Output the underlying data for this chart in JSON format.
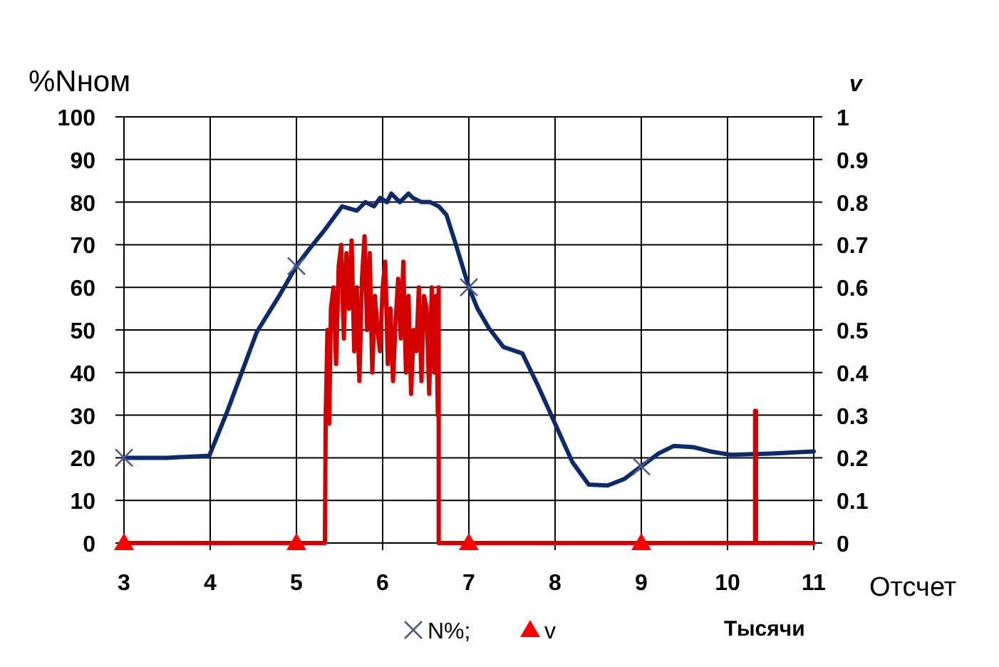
{
  "chart_data": {
    "type": "line",
    "xlabel": "Отсчет",
    "ylabel": "%Nном",
    "y2label": "v",
    "annotations": [
      "Тысячи"
    ],
    "xlim": [
      3,
      11
    ],
    "xticks": [
      3,
      4,
      5,
      6,
      7,
      8,
      9,
      10,
      11
    ],
    "ylim": [
      0,
      100
    ],
    "yticks": [
      0,
      10,
      20,
      30,
      40,
      50,
      60,
      70,
      80,
      90,
      100
    ],
    "y2lim": [
      0,
      1
    ],
    "y2ticks": [
      0,
      0.1,
      0.2,
      0.3,
      0.4,
      0.5,
      0.6,
      0.7,
      0.8,
      0.9,
      1
    ],
    "grid": true,
    "legend": "bottom",
    "series": [
      {
        "color": "#0d2a6b",
        "marker": "none",
        "x": [
          3,
          3.5,
          3.99,
          4.2,
          4.54,
          4.8,
          5,
          5.15,
          5.31,
          5.53,
          5.7,
          5.8,
          5.9,
          5.97,
          6.05,
          6.1,
          6.2,
          6.3,
          6.35,
          6.45,
          6.55,
          6.65,
          6.74,
          6.85,
          7,
          7.1,
          7.23,
          7.4,
          7.62,
          7.8,
          8,
          8.2,
          8.39,
          8.61,
          8.8,
          9,
          9.2,
          9.38,
          9.6,
          9.8,
          10.04,
          10.5,
          11
        ],
        "values": [
          20,
          20,
          20.5,
          31,
          49.5,
          58,
          65,
          69,
          73,
          79,
          78,
          80,
          79,
          81,
          80,
          82,
          80,
          82,
          81,
          80,
          80,
          79,
          77,
          70,
          60,
          55,
          50.5,
          46,
          44.5,
          37,
          28,
          19,
          13.7,
          13.5,
          15,
          18,
          21,
          22.8,
          22.5,
          21.5,
          20.7,
          21,
          21.5
        ]
      },
      {
        "type": "scatter",
        "name": "N%;",
        "color": "#4a5a8a",
        "marker": "cross",
        "x": [
          3,
          5,
          7,
          9
        ],
        "values": [
          20,
          65,
          60,
          18
        ]
      },
      {
        "axis": "y2",
        "color": "#d40000",
        "marker": "none",
        "x": [
          3,
          5.33,
          5.34,
          5.36,
          5.38,
          5.4,
          5.43,
          5.46,
          5.49,
          5.52,
          5.55,
          5.58,
          5.61,
          5.64,
          5.67,
          5.7,
          5.73,
          5.76,
          5.79,
          5.82,
          5.85,
          5.88,
          5.91,
          5.94,
          5.97,
          6,
          6.03,
          6.06,
          6.09,
          6.12,
          6.15,
          6.18,
          6.21,
          6.24,
          6.27,
          6.3,
          6.33,
          6.36,
          6.39,
          6.42,
          6.45,
          6.48,
          6.51,
          6.54,
          6.57,
          6.6,
          6.62,
          6.64,
          6.65,
          6.65,
          10.32,
          10.32,
          10.33,
          10.33,
          11
        ],
        "values": [
          0,
          0,
          0.3,
          0.5,
          0.28,
          0.55,
          0.6,
          0.42,
          0.65,
          0.7,
          0.48,
          0.68,
          0.55,
          0.71,
          0.45,
          0.6,
          0.38,
          0.62,
          0.72,
          0.5,
          0.68,
          0.4,
          0.58,
          0.5,
          0.45,
          0.6,
          0.66,
          0.42,
          0.55,
          0.38,
          0.52,
          0.62,
          0.48,
          0.66,
          0.4,
          0.58,
          0.35,
          0.5,
          0.45,
          0.6,
          0.38,
          0.58,
          0.55,
          0.35,
          0.6,
          0.4,
          0.58,
          0.3,
          0.6,
          0,
          0,
          0.31,
          0.31,
          0,
          0
        ]
      },
      {
        "type": "scatter",
        "axis": "y2",
        "name": "v",
        "color": "#ff0000",
        "marker": "triangle",
        "x": [
          3,
          5,
          7,
          9
        ],
        "values": [
          0,
          0,
          0,
          0
        ]
      }
    ]
  }
}
